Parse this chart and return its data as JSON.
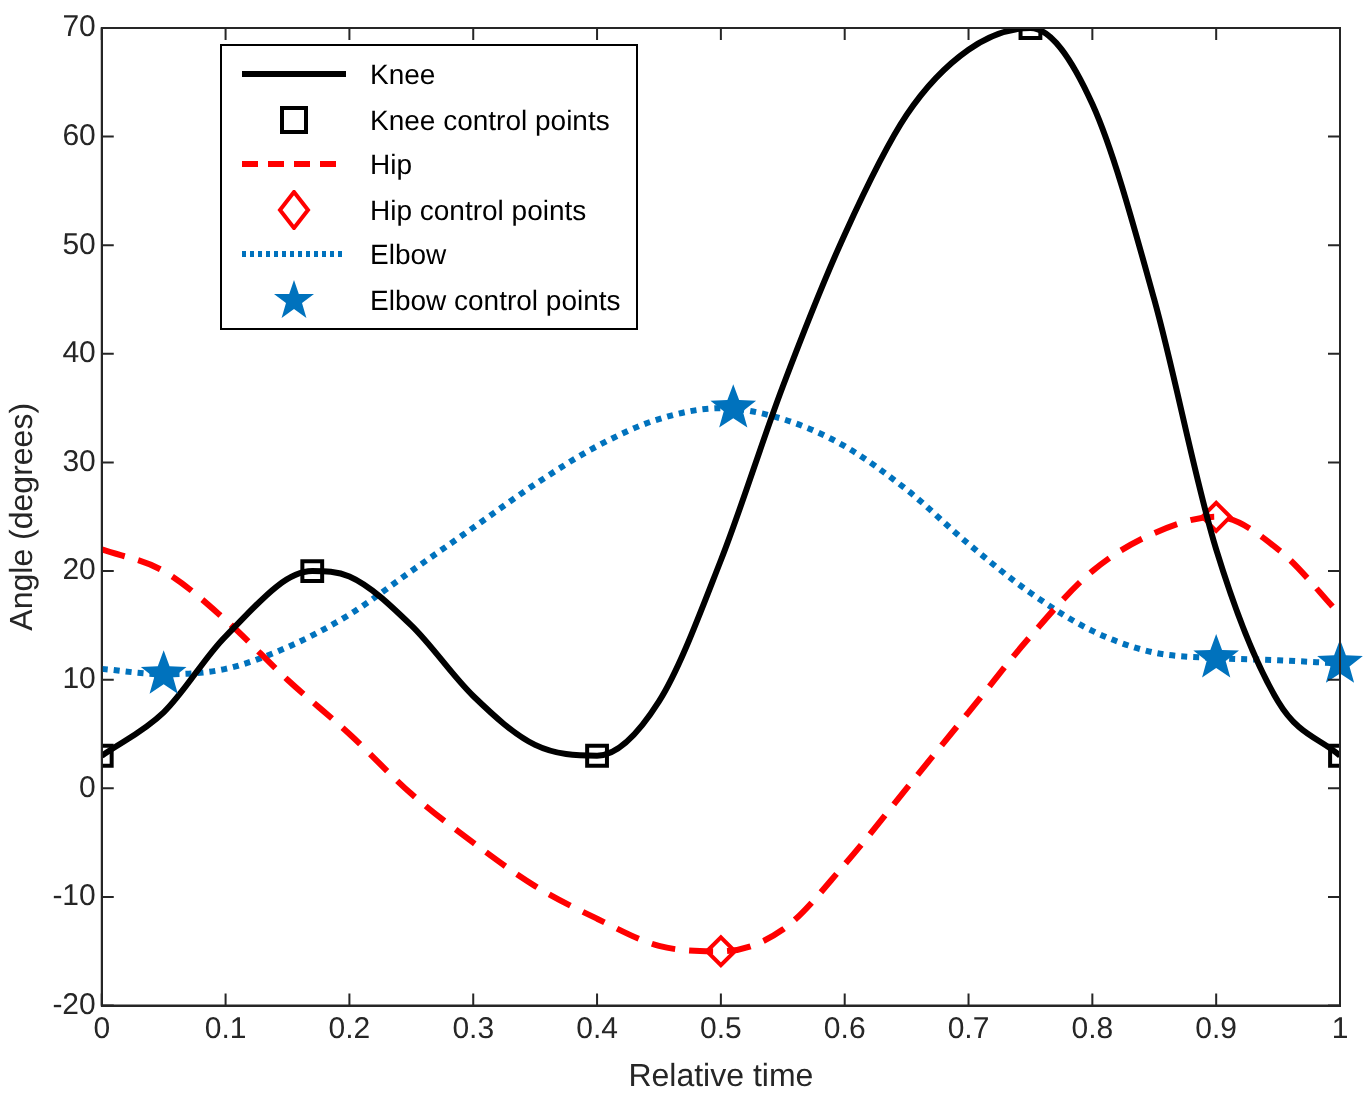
{
  "chart_data": {
    "type": "line",
    "xlabel": "Relative time",
    "ylabel": "Angle (degrees)",
    "xlim": [
      0,
      1
    ],
    "ylim": [
      -20,
      70
    ],
    "xticks": [
      0,
      0.1,
      0.2,
      0.3,
      0.4,
      0.5,
      0.6,
      0.7,
      0.8,
      0.9,
      1
    ],
    "yticks": [
      -20,
      -10,
      0,
      10,
      20,
      30,
      40,
      50,
      60,
      70
    ],
    "grid": false,
    "legend": "top left",
    "series": [
      {
        "name": "Knee",
        "type": "line",
        "line_style": "solid",
        "marker": "none",
        "color": "#000000",
        "x": [
          0,
          0.05,
          0.1,
          0.17,
          0.2,
          0.25,
          0.3,
          0.35,
          0.4,
          0.45,
          0.5,
          0.55,
          0.6,
          0.65,
          0.7,
          0.75,
          0.8,
          0.85,
          0.9,
          0.95,
          1
        ],
        "values": [
          3,
          7,
          14,
          20,
          19.5,
          15,
          8.5,
          4,
          3,
          8,
          21,
          37,
          51,
          62,
          68,
          70,
          63,
          45,
          22,
          8,
          3
        ]
      },
      {
        "name": "Knee control points",
        "type": "scatter",
        "marker": "square",
        "color": "#000000",
        "x": [
          0,
          0.17,
          0.4,
          0.75,
          1
        ],
        "values": [
          3,
          20,
          3,
          70,
          3
        ]
      },
      {
        "name": "Hip",
        "type": "line",
        "line_style": "dashed",
        "marker": "none",
        "color": "#ff0000",
        "x": [
          0,
          0.05,
          0.1,
          0.15,
          0.2,
          0.25,
          0.3,
          0.35,
          0.4,
          0.45,
          0.5,
          0.55,
          0.6,
          0.65,
          0.7,
          0.75,
          0.8,
          0.85,
          0.9,
          0.95,
          1
        ],
        "values": [
          22,
          20,
          15.5,
          10,
          5,
          -0.5,
          -5,
          -9,
          -12,
          -14.5,
          -15,
          -13,
          -7,
          0,
          7,
          14,
          20,
          23.5,
          25,
          22,
          16
        ]
      },
      {
        "name": "Hip control points",
        "type": "scatter",
        "marker": "diamond",
        "color": "#ff0000",
        "x": [
          0.5,
          0.9
        ],
        "values": [
          -15,
          25
        ]
      },
      {
        "name": "Elbow",
        "type": "line",
        "line_style": "dotted",
        "marker": "none",
        "color": "#0072bd",
        "x": [
          0,
          0.05,
          0.1,
          0.15,
          0.2,
          0.25,
          0.3,
          0.35,
          0.4,
          0.45,
          0.5,
          0.55,
          0.6,
          0.65,
          0.7,
          0.75,
          0.8,
          0.85,
          0.9,
          0.95,
          1
        ],
        "values": [
          11,
          10.5,
          11,
          13,
          16,
          20,
          24,
          28,
          31.5,
          34,
          35,
          34,
          31.5,
          27.5,
          22.5,
          18,
          14.5,
          12.5,
          12,
          11.8,
          11.5
        ]
      },
      {
        "name": "Elbow control points",
        "type": "scatter",
        "marker": "star",
        "color": "#0072bd",
        "x": [
          0.05,
          0.51,
          0.9,
          1
        ],
        "values": [
          10.5,
          35,
          12,
          11.5
        ]
      }
    ]
  }
}
